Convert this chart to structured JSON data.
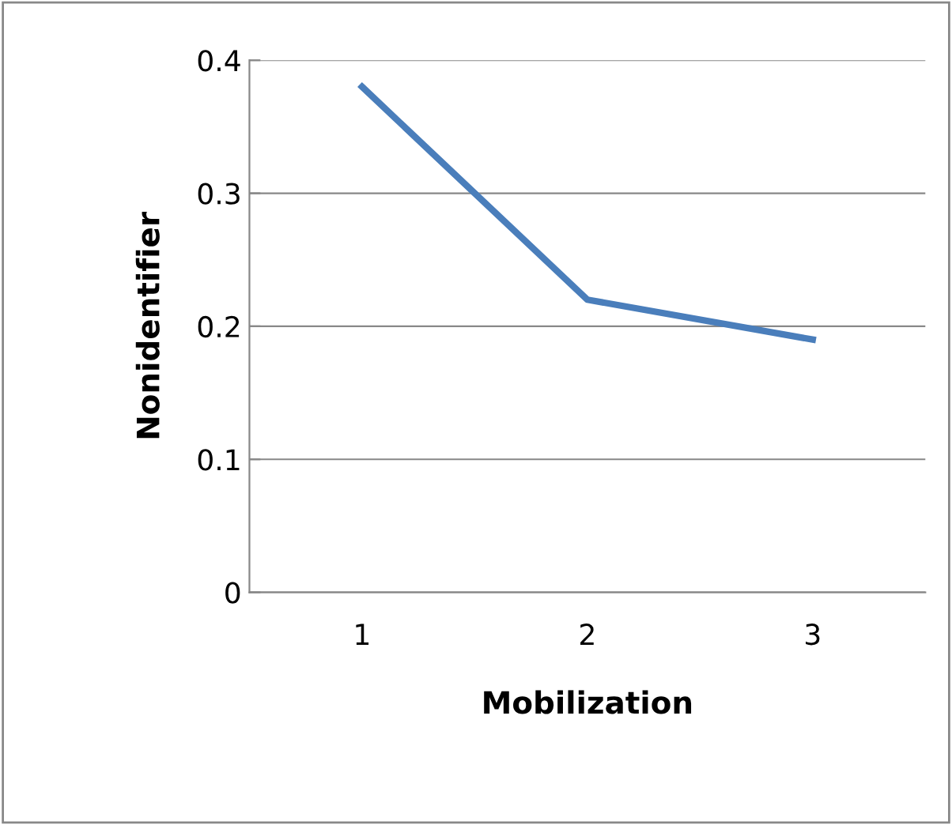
{
  "chart_data": {
    "type": "line",
    "xlabel": "Mobilization",
    "ylabel": "Nonidentifier",
    "categories": [
      "1",
      "2",
      "3"
    ],
    "series": [
      {
        "color": "#4a7ebb",
        "values": [
          0.38,
          0.22,
          0.19
        ]
      }
    ],
    "ylim": [
      0,
      0.4
    ],
    "yticks": [
      {
        "value": 0,
        "label": "0"
      },
      0.1,
      0.2,
      0.3,
      0.4
    ],
    "grid": "y",
    "legend": false,
    "marker": "none",
    "line_style": "solid"
  }
}
